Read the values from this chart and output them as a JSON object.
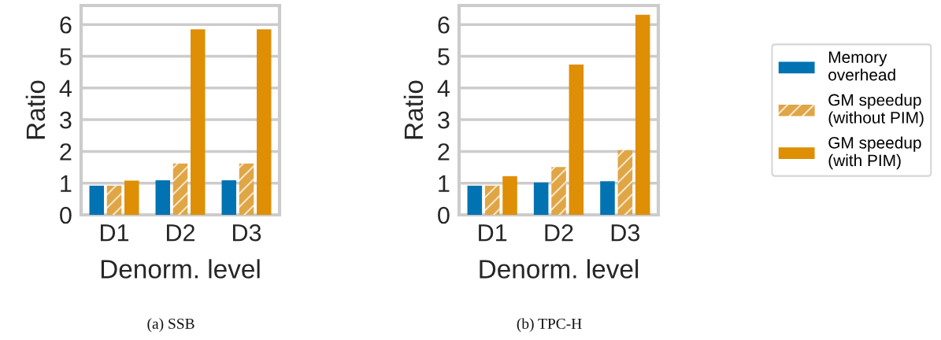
{
  "chart_data": [
    {
      "type": "bar",
      "title": "(a) SSB",
      "xlabel": "Denorm. level",
      "ylabel": "Ratio",
      "categories": [
        "D1",
        "D2",
        "D3"
      ],
      "series": [
        {
          "name": "Memory overhead",
          "color": "#0173b2",
          "values": [
            0.92,
            1.09,
            1.09
          ]
        },
        {
          "name": "GM speedup (without PIM)",
          "color": "#e0a545",
          "values": [
            0.92,
            1.62,
            1.62
          ]
        },
        {
          "name": "GM speedup (with PIM)",
          "color": "#de8f05",
          "values": [
            1.08,
            5.85,
            5.85
          ]
        }
      ],
      "ylim": [
        0,
        6.6
      ],
      "yticks": [
        0,
        1,
        2,
        3,
        4,
        5,
        6
      ],
      "grid": "y",
      "legend": "right"
    },
    {
      "type": "bar",
      "title": "(b) TPC-H",
      "xlabel": "Denorm. level",
      "ylabel": "Ratio",
      "categories": [
        "D1",
        "D2",
        "D3"
      ],
      "series": [
        {
          "color": "#0173b2",
          "values": [
            0.92,
            1.02,
            1.06
          ]
        },
        {
          "color": "#e0a545",
          "values": [
            0.92,
            1.51,
            2.04
          ]
        },
        {
          "color": "#de8f05",
          "values": [
            1.22,
            4.74,
            6.31
          ]
        }
      ],
      "ylim": [
        0,
        6.6
      ],
      "yticks": [
        0,
        1,
        2,
        3,
        4,
        5,
        6
      ],
      "grid": "y"
    }
  ]
}
